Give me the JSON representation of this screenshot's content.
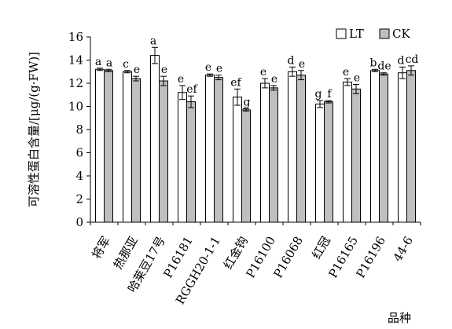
{
  "chart_data": {
    "type": "bar",
    "xlabel": "品种",
    "ylabel": "可溶性蛋白含量/[μg/(g·FW)]",
    "ylim": [
      0,
      16
    ],
    "yticks": [
      0,
      2,
      4,
      6,
      8,
      10,
      12,
      14,
      16
    ],
    "grid": false,
    "legend_position": "top-right",
    "categories": [
      "将军",
      "热那亚",
      "哈莱豆17号",
      "P16181",
      "RGGH20-1-1",
      "红金钩",
      "P16100",
      "P16068",
      "红冠",
      "P16165",
      "P16196",
      "44-6"
    ],
    "series": [
      {
        "name": "LT",
        "color": "#ffffff",
        "values": [
          13.2,
          13.0,
          14.4,
          11.2,
          12.7,
          10.8,
          12.0,
          13.0,
          10.2,
          12.1,
          13.1,
          12.9
        ],
        "errors": [
          0.1,
          0.1,
          0.7,
          0.6,
          0.1,
          0.7,
          0.4,
          0.4,
          0.3,
          0.3,
          0.1,
          0.5
        ],
        "significance": [
          "a",
          "c",
          "a",
          "e",
          "e",
          "ef",
          "e",
          "d",
          "g",
          "e",
          "b",
          "d"
        ]
      },
      {
        "name": "CK",
        "color": "#bfbfbf",
        "values": [
          13.1,
          12.4,
          12.2,
          10.4,
          12.5,
          9.7,
          11.6,
          12.7,
          10.4,
          11.5,
          12.8,
          13.1
        ],
        "errors": [
          0.1,
          0.2,
          0.4,
          0.5,
          0.2,
          0.1,
          0.2,
          0.4,
          0.1,
          0.4,
          0.1,
          0.4
        ],
        "significance": [
          "a",
          "e",
          "e",
          "ef",
          "e",
          "g",
          "e",
          "e",
          "f",
          "e",
          "de",
          "cd"
        ]
      }
    ]
  }
}
